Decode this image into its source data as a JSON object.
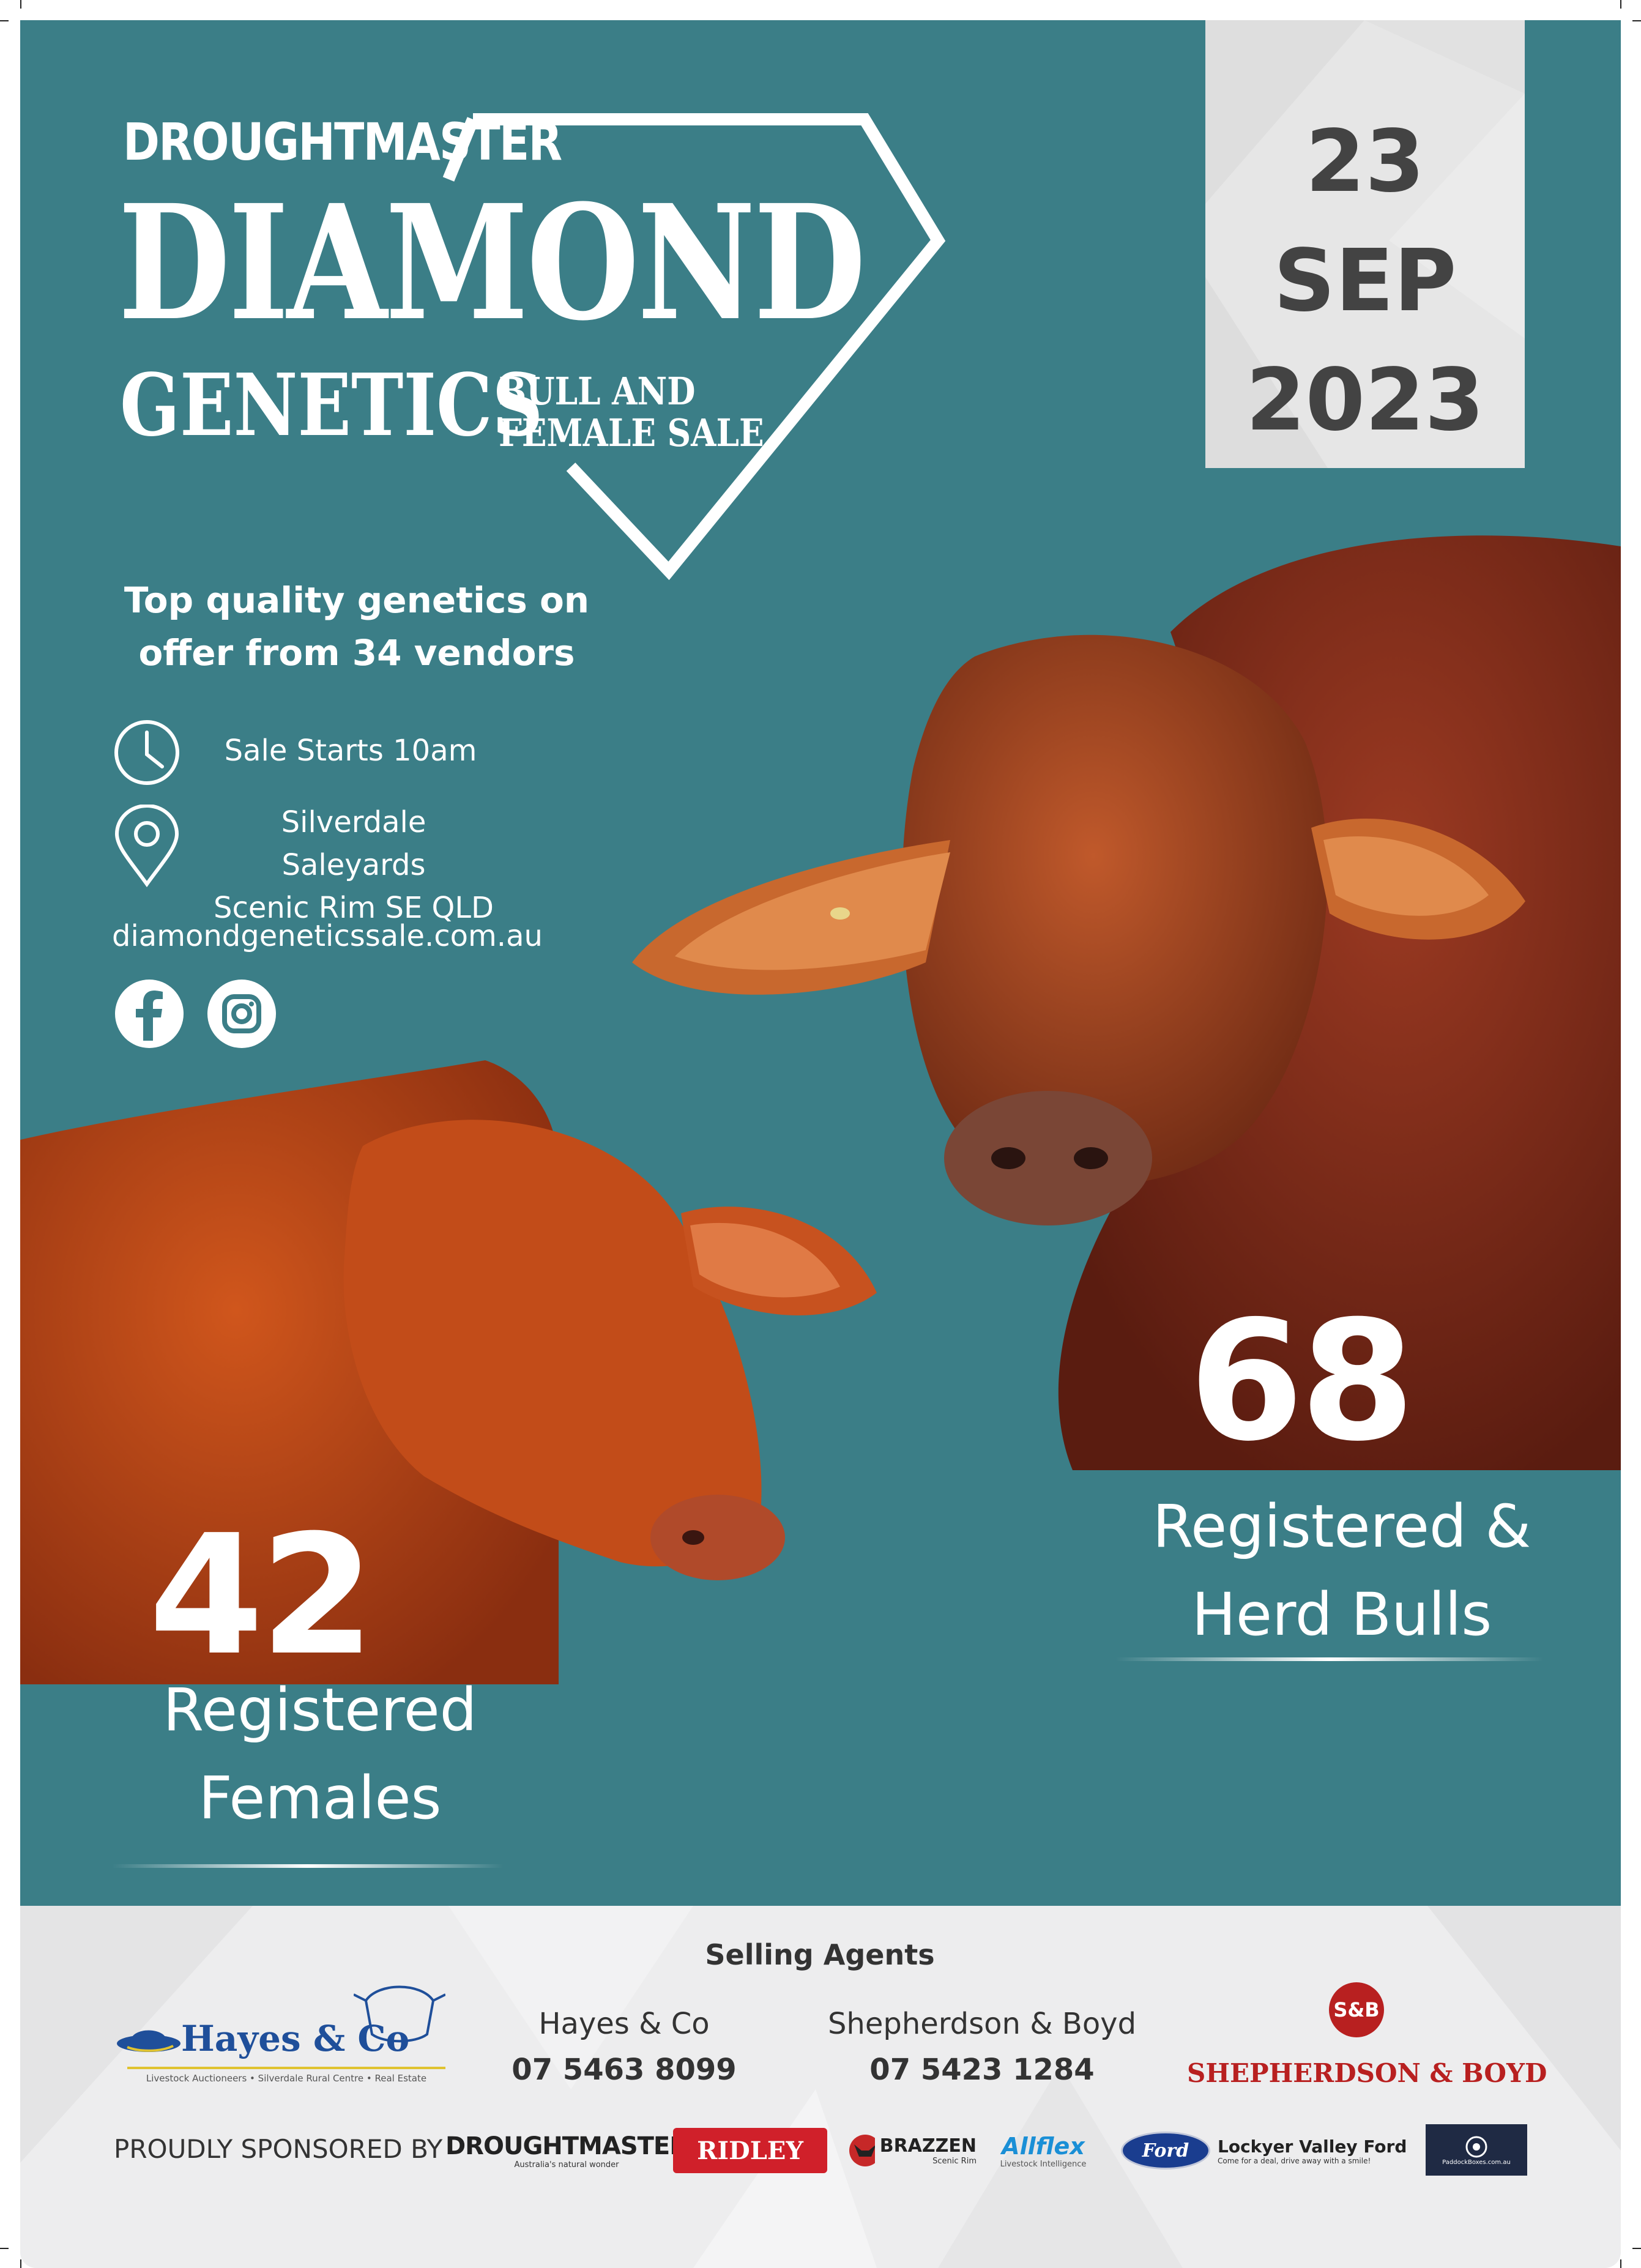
{
  "header": {
    "brand_top": "DROUGHTMASTER",
    "brand_main": "DIAMOND",
    "brand_sub": "GENETICS",
    "sale_line1": "BULL AND",
    "sale_line2": "FEMALE SALE"
  },
  "date": {
    "day": "23",
    "month": "SEP",
    "year": "2023"
  },
  "tagline": {
    "line1": "Top quality genetics on",
    "line2": "offer from 34 vendors"
  },
  "details": {
    "time": "Sale Starts 10am",
    "location_line1": "Silverdale Saleyards",
    "location_line2": "Scenic Rim SE QLD",
    "website": "diamondgeneticssale.com.au"
  },
  "social": [
    {
      "icon": "facebook-icon"
    },
    {
      "icon": "instagram-icon"
    }
  ],
  "bulls": {
    "count": "68",
    "label_line1": "Registered &",
    "label_line2": "Herd Bulls"
  },
  "females": {
    "count": "42",
    "label_line1": "Registered",
    "label_line2": "Females"
  },
  "footer": {
    "heading": "Selling Agents",
    "agents": [
      {
        "name": "Hayes & Co",
        "phone": "07 5463 8099"
      },
      {
        "name": "Shepherdson & Boyd",
        "phone": "07 5423 1284"
      }
    ],
    "hayes_logo_text": "Hayes & Co",
    "hayes_logo_tagline": "Livestock Auctioneers  •  Silverdale Rural Centre  •  Real Estate",
    "sb_badge": "S&B",
    "sb_logo_text": "SHEPHERDSON & BOYD",
    "sponsored_label": "PROUDLY SPONSORED BY",
    "sponsors": {
      "droughtmaster": "DROUGHTMASTER",
      "droughtmaster_tag": "Australia's natural wonder",
      "ridley": "RIDLEY",
      "brazzen": "BRAZZEN",
      "brazzen_tag": "Scenic Rim",
      "allflex": "Allflex",
      "allflex_tag": "Livestock Intelligence",
      "ford": "Ford",
      "lockyer": "Lockyer Valley Ford",
      "lockyer_tag": "Come for a deal, drive away with a smile!",
      "paddock": "PaddockBoxes.com.au"
    }
  },
  "colors": {
    "teal": "#3b7e87",
    "date_text": "#434343",
    "cattle_red": "#b5471f",
    "footer_bg": "#ededee"
  }
}
